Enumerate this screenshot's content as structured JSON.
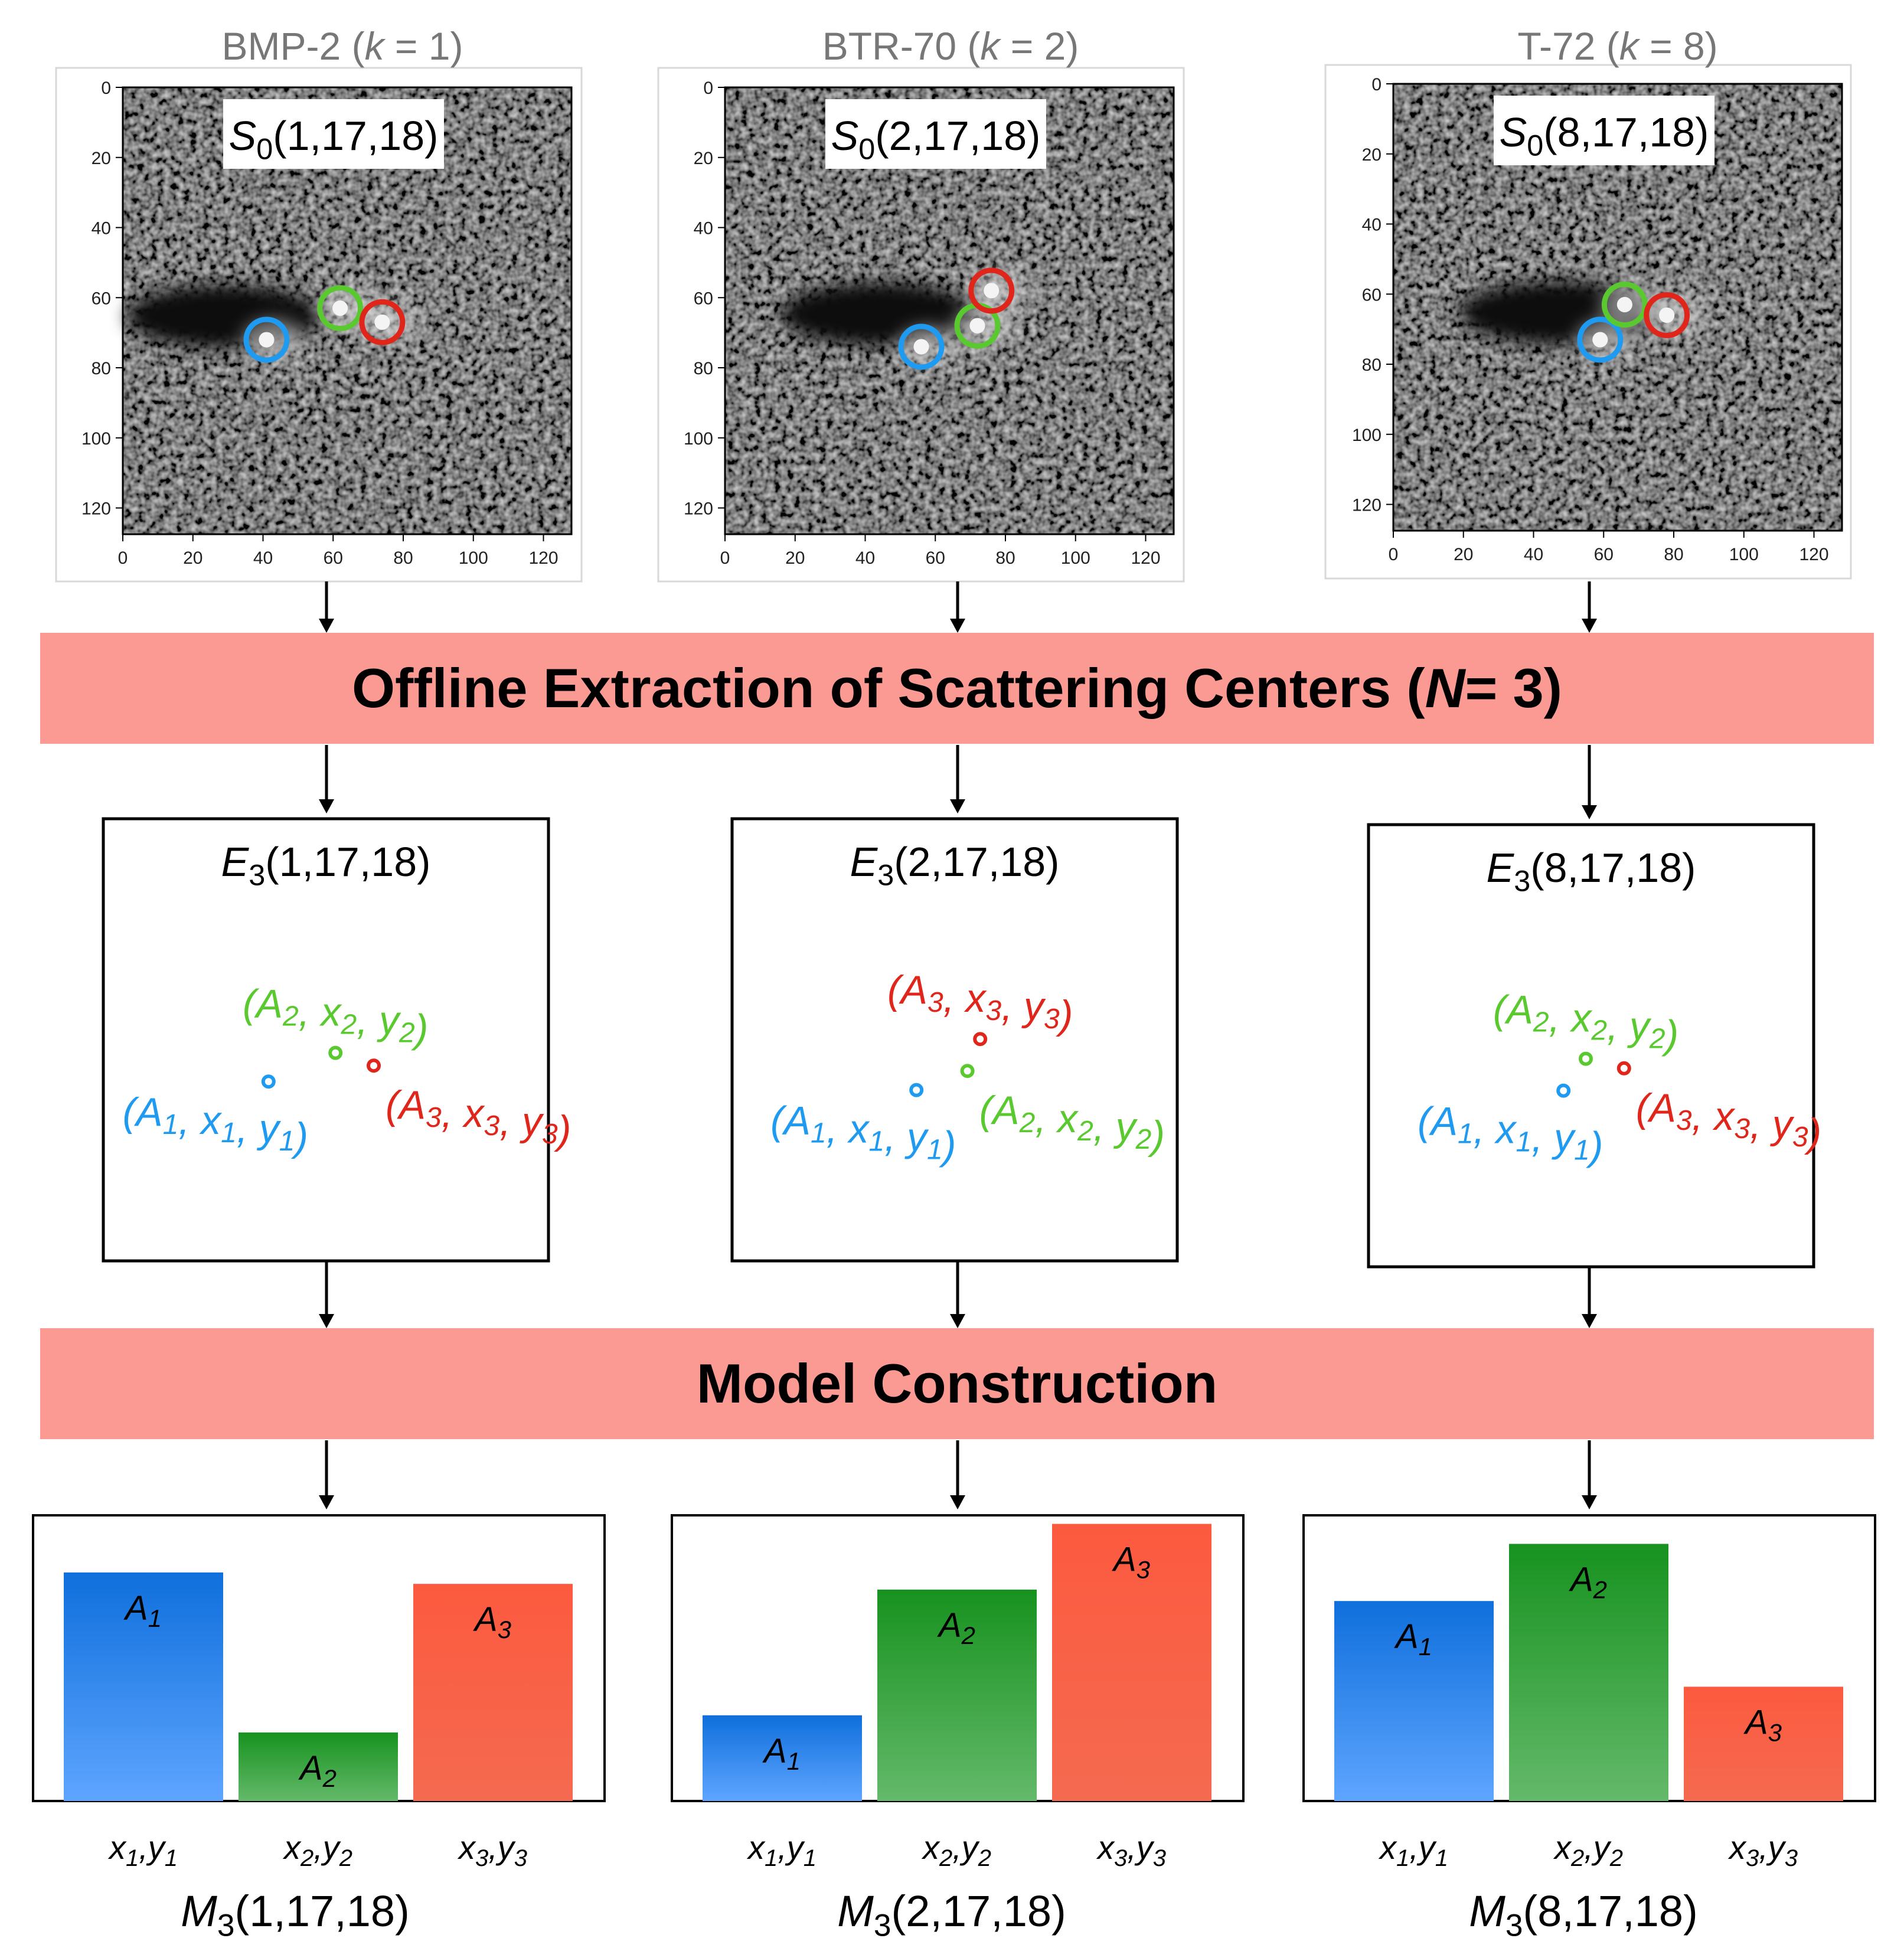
{
  "colors": {
    "banner": "#fb9a92",
    "blue": "#1e9bf0",
    "green": "#5ac930",
    "red": "#e0261b",
    "title_gray": "#777777",
    "bar_blue_top": "#0f6fdc",
    "bar_blue_bottom": "#5ea5ff",
    "bar_green_top": "#17921f",
    "bar_green_bottom": "#64b96a",
    "bar_red_top": "#fc5a3f",
    "bar_red_bottom": "#f46a50"
  },
  "axis_ticks": [
    "0",
    "20",
    "40",
    "60",
    "80",
    "100",
    "120"
  ],
  "banners": {
    "offline": {
      "prefix": "Offline Extraction of Scattering Centers (",
      "var": "N",
      "suffix": " = 3)"
    },
    "model": {
      "label": "Model Construction"
    }
  },
  "columns": [
    {
      "title": {
        "name": "BMP-2 (",
        "var": "k",
        "rest": " = 1)"
      },
      "sar_label": {
        "base": "S",
        "sub": "0",
        "args": "(1,17,18)"
      },
      "circles": [
        {
          "color": "blue",
          "x": 41,
          "y": 72
        },
        {
          "color": "green",
          "x": 62,
          "y": 63
        },
        {
          "color": "red",
          "x": 74,
          "y": 67
        }
      ],
      "extraction": {
        "label": {
          "base": "E",
          "sub": "3",
          "args": "(1,17,18)"
        },
        "points": [
          {
            "name": "A1",
            "color": "blue",
            "x": 41,
            "y": 72,
            "text": "(A1, x1, y1)"
          },
          {
            "name": "A2",
            "color": "green",
            "x": 62,
            "y": 63,
            "text": "(A2, x2, y2)"
          },
          {
            "name": "A3",
            "color": "red",
            "x": 74,
            "y": 67,
            "text": "(A3, x3, y3)"
          }
        ]
      },
      "model": {
        "label": {
          "base": "M",
          "sub": "3",
          "args": "(1,17,18)"
        },
        "bars": [
          {
            "label": "A1",
            "value": 0.8,
            "tick": "x1,y1",
            "color": "blue"
          },
          {
            "label": "A2",
            "value": 0.24,
            "tick": "x2,y2",
            "color": "green"
          },
          {
            "label": "A3",
            "value": 0.76,
            "tick": "x3,y3",
            "color": "red"
          }
        ]
      }
    },
    {
      "title": {
        "name": "BTR-70 (",
        "var": "k",
        "rest": " = 2)"
      },
      "sar_label": {
        "base": "S",
        "sub": "0",
        "args": "(2,17,18)"
      },
      "circles": [
        {
          "color": "blue",
          "x": 56,
          "y": 74
        },
        {
          "color": "green",
          "x": 72,
          "y": 68
        },
        {
          "color": "red",
          "x": 76,
          "y": 58
        }
      ],
      "extraction": {
        "label": {
          "base": "E",
          "sub": "3",
          "args": "(2,17,18)"
        },
        "points": [
          {
            "name": "A1",
            "color": "blue",
            "x": 56,
            "y": 74,
            "text": "(A1, x1, y1)"
          },
          {
            "name": "A2",
            "color": "green",
            "x": 72,
            "y": 68,
            "text": "(A2, x2, y2)"
          },
          {
            "name": "A3",
            "color": "red",
            "x": 76,
            "y": 58,
            "text": "(A3, x3, y3)"
          }
        ]
      },
      "model": {
        "label": {
          "base": "M",
          "sub": "3",
          "args": "(2,17,18)"
        },
        "bars": [
          {
            "label": "A1",
            "value": 0.3,
            "tick": "x1,y1",
            "color": "blue"
          },
          {
            "label": "A2",
            "value": 0.74,
            "tick": "x2,y2",
            "color": "green"
          },
          {
            "label": "A3",
            "value": 0.97,
            "tick": "x3,y3",
            "color": "red"
          }
        ]
      }
    },
    {
      "title": {
        "name": "T-72 (",
        "var": "k",
        "rest": " = 8)"
      },
      "sar_label": {
        "base": "S",
        "sub": "0",
        "args": "(8,17,18)"
      },
      "circles": [
        {
          "color": "blue",
          "x": 59,
          "y": 73
        },
        {
          "color": "green",
          "x": 66,
          "y": 63
        },
        {
          "color": "red",
          "x": 78,
          "y": 66
        }
      ],
      "extraction": {
        "label": {
          "base": "E",
          "sub": "3",
          "args": "(8,17,18)"
        },
        "points": [
          {
            "name": "A1",
            "color": "blue",
            "x": 59,
            "y": 73,
            "text": "(A1, x1, y1)"
          },
          {
            "name": "A2",
            "color": "green",
            "x": 66,
            "y": 63,
            "text": "(A2, x2, y2)"
          },
          {
            "name": "A3",
            "color": "red",
            "x": 78,
            "y": 66,
            "text": "(A3, x3, y3)"
          }
        ]
      },
      "model": {
        "label": {
          "base": "M",
          "sub": "3",
          "args": "(8,17,18)"
        },
        "bars": [
          {
            "label": "A1",
            "value": 0.7,
            "tick": "x1,y1",
            "color": "blue"
          },
          {
            "label": "A2",
            "value": 0.9,
            "tick": "x2,y2",
            "color": "green"
          },
          {
            "label": "A3",
            "value": 0.4,
            "tick": "x3,y3",
            "color": "red"
          }
        ]
      }
    }
  ]
}
